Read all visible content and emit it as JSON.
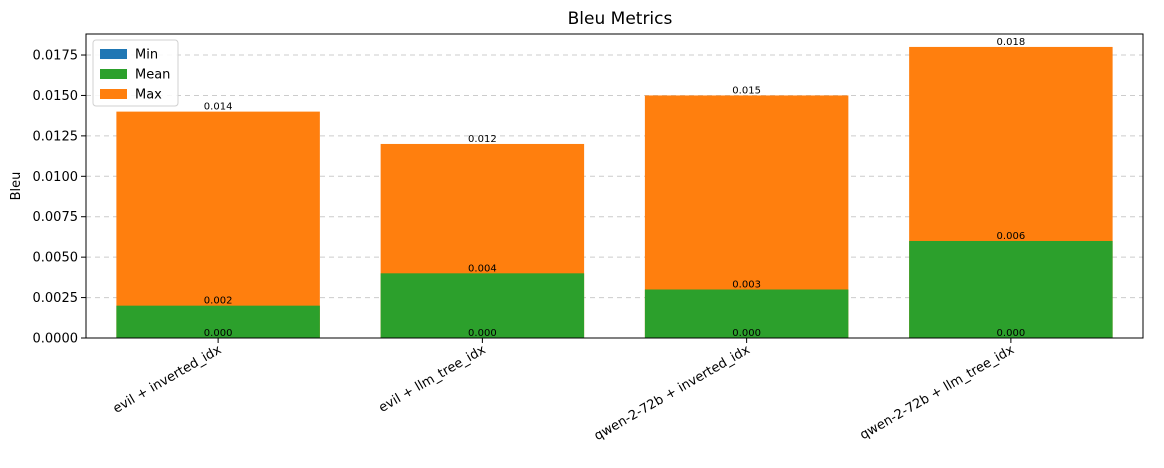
{
  "chart_data": {
    "type": "bar",
    "title": "Bleu Metrics",
    "xlabel": "",
    "ylabel": "Bleu",
    "categories": [
      "evil + inverted_idx",
      "evil + llm_tree_idx",
      "qwen-2-72b + inverted_idx",
      "qwen-2-72b + llm_tree_idx"
    ],
    "series": [
      {
        "name": "Min",
        "values": [
          0.0,
          0.0,
          0.0,
          0.0
        ],
        "labels": [
          "0.000",
          "0.000",
          "0.000",
          "0.000"
        ],
        "color": "#1f77b4"
      },
      {
        "name": "Mean",
        "values": [
          0.002,
          0.004,
          0.003,
          0.006
        ],
        "labels": [
          "0.002",
          "0.004",
          "0.003",
          "0.006"
        ],
        "color": "#2ca02c"
      },
      {
        "name": "Max",
        "values": [
          0.014,
          0.012,
          0.015,
          0.018
        ],
        "labels": [
          "0.014",
          "0.012",
          "0.015",
          "0.018"
        ],
        "color": "#ff7f0e"
      }
    ],
    "ylim": [
      0,
      0.0188
    ],
    "yticks": [
      0.0,
      0.0025,
      0.005,
      0.0075,
      0.01,
      0.0125,
      0.015,
      0.0175
    ],
    "ytick_labels": [
      "0.0000",
      "0.0025",
      "0.0050",
      "0.0075",
      "0.0100",
      "0.0125",
      "0.0150",
      "0.0175"
    ],
    "grid": "y-dashed",
    "legend_position": "top-left",
    "bar_layering": "overlaid, Max behind Mean behind Min"
  }
}
